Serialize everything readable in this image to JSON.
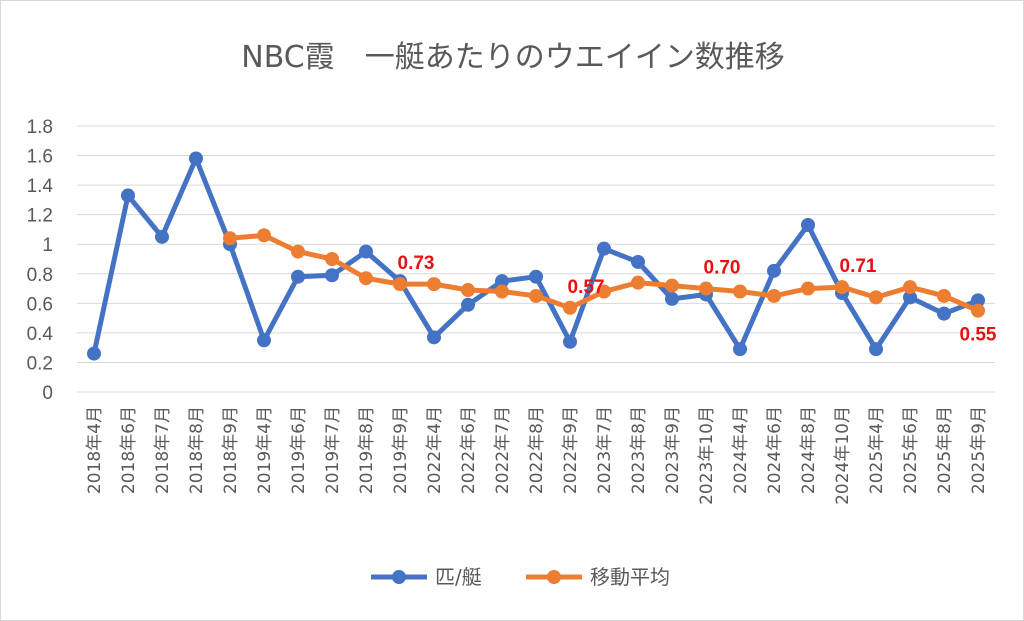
{
  "chart_data": {
    "type": "line",
    "title": "NBC霞　一艇あたりのウエイイン数推移",
    "xlabel": "",
    "ylabel": "",
    "ylim": [
      0,
      1.8
    ],
    "ytick_labels": [
      "0",
      "0.2",
      "0.4",
      "0.6",
      "0.8",
      "1",
      "1.2",
      "1.4",
      "1.6",
      "1.8"
    ],
    "grid": true,
    "legend_position": "bottom",
    "categories": [
      "2018年4月",
      "2018年6月",
      "2018年7月",
      "2018年8月",
      "2018年9月",
      "2019年4月",
      "2019年6月",
      "2019年7月",
      "2019年8月",
      "2019年9月",
      "2022年4月",
      "2022年6月",
      "2022年7月",
      "2022年8月",
      "2022年9月",
      "2023年7月",
      "2023年8月",
      "2023年9月",
      "2023年10月",
      "2024年4月",
      "2024年6月",
      "2024年8月",
      "2024年10月",
      "2025年4月",
      "2025年6月",
      "2025年8月",
      "2025年9月"
    ],
    "series": [
      {
        "name": "匹/艇",
        "color": "#4472c4",
        "values": [
          0.26,
          1.33,
          1.05,
          1.58,
          1.0,
          0.35,
          0.78,
          0.79,
          0.95,
          0.75,
          0.37,
          0.59,
          0.75,
          0.78,
          0.34,
          0.97,
          0.88,
          0.63,
          0.66,
          0.29,
          0.82,
          1.13,
          0.67,
          0.29,
          0.64,
          0.53,
          0.62
        ]
      },
      {
        "name": "移動平均",
        "color": "#ed7d31",
        "values": [
          null,
          null,
          null,
          null,
          1.04,
          1.06,
          0.95,
          0.9,
          0.77,
          0.73,
          0.73,
          0.69,
          0.68,
          0.65,
          0.57,
          0.68,
          0.74,
          0.72,
          0.7,
          0.68,
          0.65,
          0.7,
          0.71,
          0.64,
          0.71,
          0.65,
          0.55
        ]
      }
    ],
    "annotations": [
      {
        "category_index": 9,
        "text": "0.73"
      },
      {
        "category_index": 14,
        "text": "0.57"
      },
      {
        "category_index": 18,
        "text": "0.70"
      },
      {
        "category_index": 22,
        "text": "0.71"
      },
      {
        "category_index": 26,
        "text": "0.55"
      }
    ],
    "annotation_color": "#e81010"
  }
}
